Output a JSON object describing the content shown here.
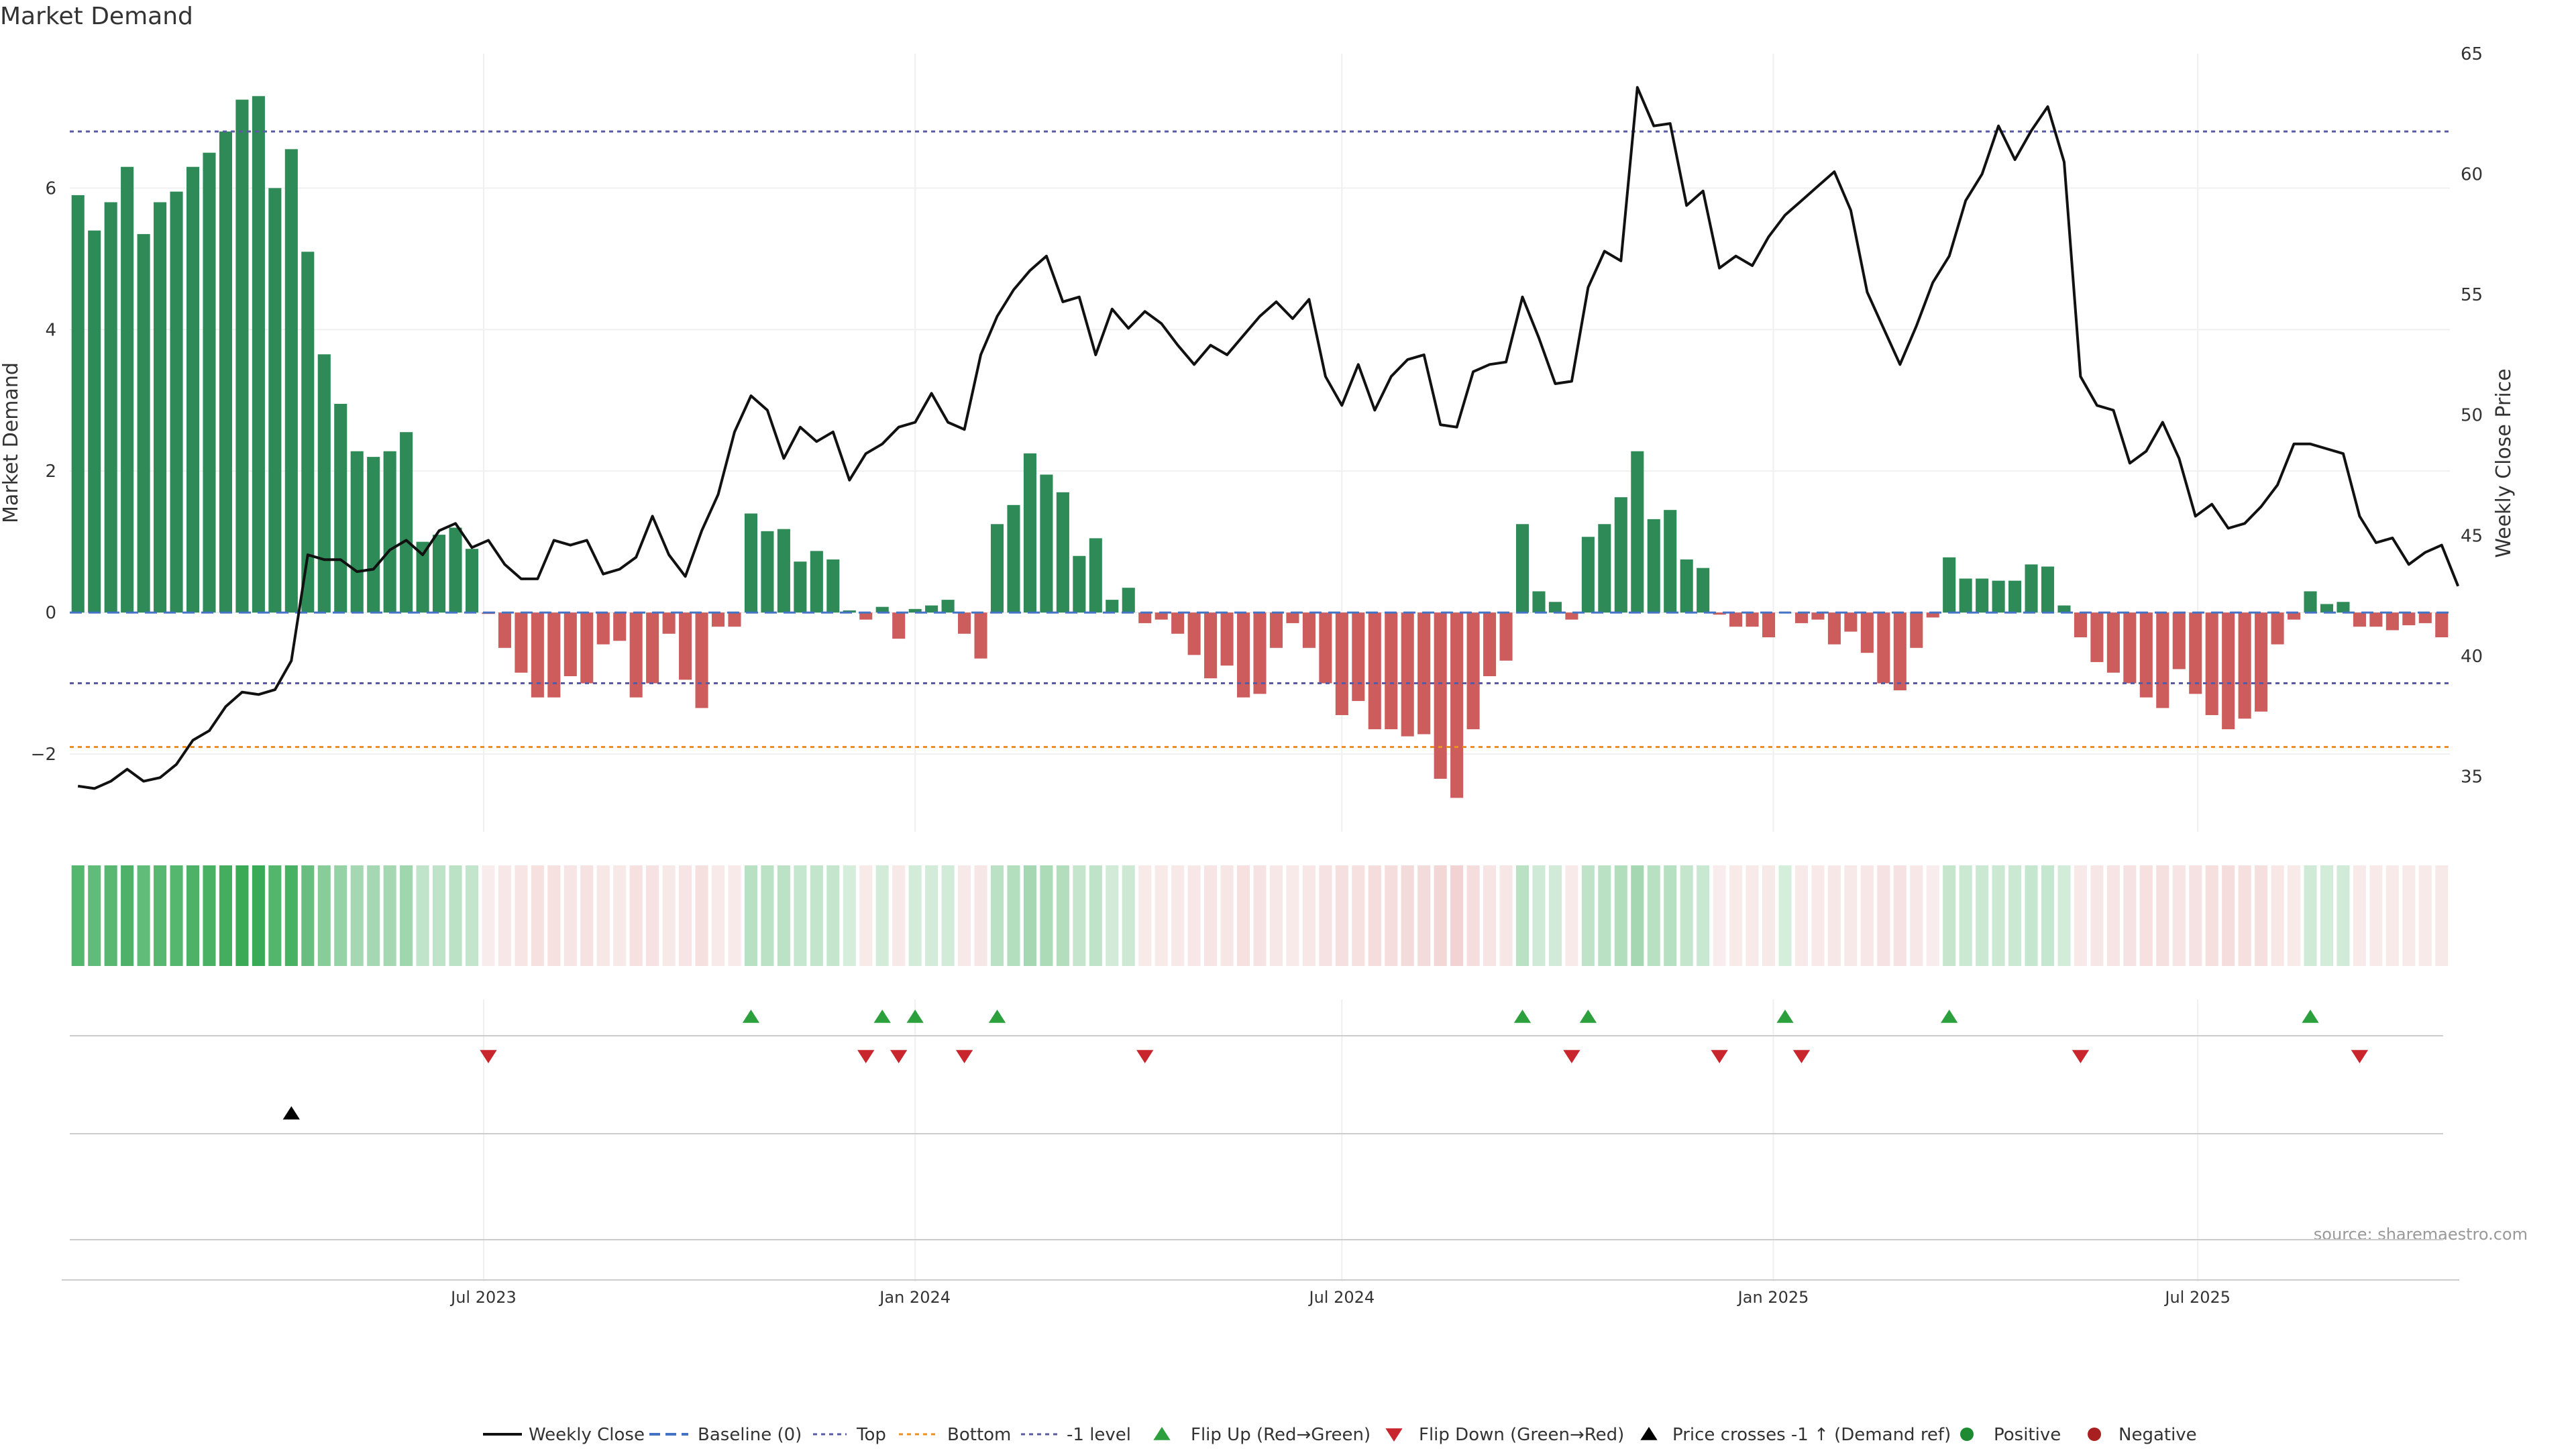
{
  "title": "Market Demand",
  "source": "source: sharemaestro.com",
  "colors": {
    "positive": "#2e8b57",
    "negative": "#cd5c5c",
    "price": "#111111",
    "top": "#5a5aa0",
    "bottom": "#e8902a",
    "minus1": "#5a5aa0",
    "flip_up": "#2ca03c",
    "flip_down": "#c8252c",
    "cross": "#000000",
    "baseline": "#4472c4"
  },
  "chart_data": {
    "type": "bar",
    "left_axis": {
      "label": "Market Demand",
      "ticks": [
        -2,
        0,
        2,
        4,
        6
      ],
      "range": [
        -3.1,
        7.9
      ]
    },
    "right_axis": {
      "label": "Weekly Close Price",
      "ticks": [
        35,
        40,
        45,
        50,
        55,
        60,
        65
      ],
      "range": [
        32.7,
        65
      ]
    },
    "x_axis": {
      "start": "2023-01-09",
      "interval_days": 7,
      "ticks": [
        {
          "label": "Jul 2023",
          "date": "2023-07-01"
        },
        {
          "label": "Jan 2024",
          "date": "2024-01-01"
        },
        {
          "label": "Jul 2024",
          "date": "2024-07-01"
        },
        {
          "label": "Jan 2025",
          "date": "2025-01-01"
        },
        {
          "label": "Jul 2025",
          "date": "2025-07-01"
        }
      ]
    },
    "reference_lines": {
      "top": 6.8,
      "bottom": -1.9,
      "minus_one": -1,
      "baseline": 0
    },
    "demand": [
      5.9,
      5.4,
      5.8,
      6.3,
      5.35,
      5.8,
      5.95,
      6.3,
      6.5,
      6.8,
      7.25,
      7.3,
      6.0,
      6.55,
      5.1,
      3.65,
      2.95,
      2.28,
      2.2,
      2.28,
      2.55,
      1.0,
      1.1,
      1.2,
      0.9,
      -0.02,
      -0.5,
      -0.85,
      -1.2,
      -1.2,
      -0.9,
      -1.0,
      -0.45,
      -0.4,
      -1.2,
      -1.0,
      -0.3,
      -0.95,
      -1.35,
      -0.2,
      -0.2,
      1.4,
      1.15,
      1.18,
      0.72,
      0.87,
      0.75,
      0.03,
      -0.1,
      0.08,
      -0.37,
      0.05,
      0.1,
      0.18,
      -0.3,
      -0.65,
      1.25,
      1.52,
      2.25,
      1.95,
      1.7,
      0.8,
      1.05,
      0.18,
      0.35,
      -0.15,
      -0.1,
      -0.3,
      -0.6,
      -0.93,
      -0.75,
      -1.2,
      -1.15,
      -0.5,
      -0.15,
      -0.5,
      -1.0,
      -1.45,
      -1.25,
      -1.65,
      -1.65,
      -1.75,
      -1.72,
      -2.35,
      -2.62,
      -1.65,
      -0.9,
      -0.68,
      1.25,
      0.3,
      0.15,
      -0.1,
      1.07,
      1.25,
      1.63,
      2.28,
      1.32,
      1.45,
      0.75,
      0.63,
      -0.03,
      -0.2,
      -0.2,
      -0.35,
      0.0,
      -0.15,
      -0.1,
      -0.45,
      -0.27,
      -0.57,
      -1.0,
      -1.1,
      -0.5,
      -0.07,
      0.78,
      0.48,
      0.48,
      0.45,
      0.45,
      0.68,
      0.65,
      0.1,
      -0.35,
      -0.7,
      -0.85,
      -1.0,
      -1.2,
      -1.35,
      -0.8,
      -1.15,
      -1.45,
      -1.65,
      -1.5,
      -1.4,
      -0.45,
      -0.1,
      0.3,
      0.12,
      0.15,
      -0.2,
      -0.2,
      -0.25,
      -0.18,
      -0.15,
      -0.35
    ],
    "close": [
      34.6,
      34.5,
      34.8,
      35.3,
      34.8,
      34.95,
      35.5,
      36.5,
      36.9,
      37.9,
      38.5,
      38.4,
      38.6,
      39.8,
      44.2,
      44.0,
      44.0,
      43.5,
      43.6,
      44.4,
      44.8,
      44.2,
      45.2,
      45.5,
      44.5,
      44.8,
      43.8,
      43.2,
      43.2,
      44.8,
      44.6,
      44.8,
      43.4,
      43.6,
      44.1,
      45.8,
      44.2,
      43.3,
      45.2,
      46.7,
      49.3,
      50.8,
      50.2,
      48.2,
      49.5,
      48.9,
      49.3,
      47.3,
      48.4,
      48.8,
      49.5,
      49.7,
      50.9,
      49.7,
      49.4,
      52.5,
      54.1,
      55.2,
      56.0,
      56.6,
      54.7,
      54.9,
      52.5,
      54.4,
      53.6,
      54.3,
      53.8,
      52.9,
      52.1,
      52.9,
      52.5,
      53.3,
      54.1,
      54.7,
      54.0,
      54.8,
      51.6,
      50.4,
      52.1,
      50.2,
      51.6,
      52.3,
      52.5,
      49.6,
      49.5,
      51.8,
      52.1,
      52.2,
      54.9,
      53.2,
      51.3,
      51.4,
      55.3,
      56.8,
      56.4,
      63.6,
      62.0,
      62.1,
      58.7,
      59.3,
      56.1,
      56.6,
      56.2,
      57.4,
      58.3,
      58.9,
      59.5,
      60.1,
      58.5,
      55.1,
      53.6,
      52.1,
      53.7,
      55.5,
      56.6,
      58.9,
      60.0,
      62.0,
      60.6,
      61.8,
      62.8,
      60.5,
      51.6,
      50.4,
      50.2,
      48.0,
      48.5,
      49.7,
      48.2,
      45.8,
      46.3,
      45.3,
      45.5,
      46.2,
      47.1,
      48.8,
      48.8,
      48.6,
      48.4,
      45.8,
      44.7,
      44.9,
      43.8,
      44.3,
      44.6,
      42.9
    ],
    "cross_up_index": 13,
    "series": [
      {
        "name": "Weekly Close"
      },
      {
        "name": "Baseline (0)"
      },
      {
        "name": "Top"
      },
      {
        "name": "Bottom"
      },
      {
        "name": "-1 level"
      },
      {
        "name": "Flip Up (Red→Green)"
      },
      {
        "name": "Flip Down (Green→Red)"
      },
      {
        "name": "Price crosses -1 ↑ (Demand ref)"
      },
      {
        "name": "Positive"
      },
      {
        "name": "Negative"
      }
    ],
    "legend_position": "bottom-center"
  }
}
